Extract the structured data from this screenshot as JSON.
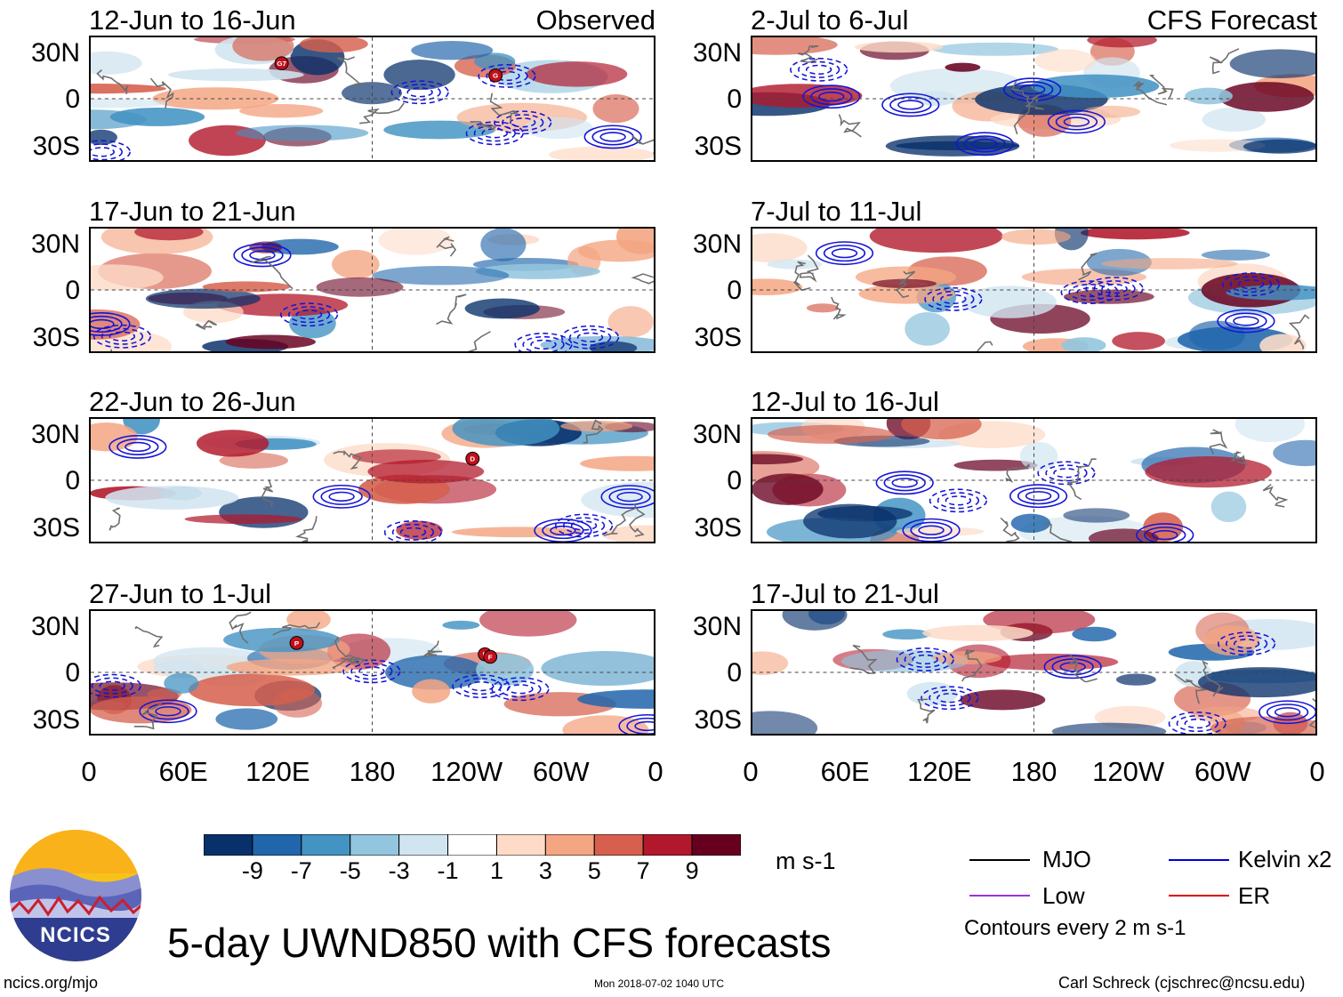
{
  "title": "5-day UWND850 with CFS forecasts",
  "headers": {
    "observed": "Observed",
    "forecast": "CFS Forecast"
  },
  "panels": [
    {
      "date": "12-Jun to 16-Jun",
      "kind": "observed"
    },
    {
      "date": "17-Jun to 21-Jun",
      "kind": "observed"
    },
    {
      "date": "22-Jun to 26-Jun",
      "kind": "observed"
    },
    {
      "date": "27-Jun to 1-Jul",
      "kind": "observed"
    },
    {
      "date": "2-Jul to 6-Jul",
      "kind": "forecast"
    },
    {
      "date": "7-Jul to 11-Jul",
      "kind": "forecast"
    },
    {
      "date": "12-Jul to 16-Jul",
      "kind": "forecast"
    },
    {
      "date": "17-Jul to 21-Jul",
      "kind": "forecast"
    }
  ],
  "lat_labels": [
    "30N",
    "0",
    "30S"
  ],
  "lon_labels": [
    "0",
    "60E",
    "120E",
    "180",
    "120W",
    "60W",
    "0"
  ],
  "colorbar": {
    "unit": "m s-1",
    "labels": [
      "-9",
      "-7",
      "-5",
      "-3",
      "-1",
      "1",
      "3",
      "5",
      "7",
      "9"
    ],
    "colors": [
      "#08306b",
      "#2166ac",
      "#4393c3",
      "#92c5de",
      "#d1e5f0",
      "#ffffff",
      "#fddbc7",
      "#f4a582",
      "#d6604d",
      "#b2182b",
      "#67001f"
    ]
  },
  "legend": [
    {
      "label": "MJO",
      "color": "#000000"
    },
    {
      "label": "Kelvin x2",
      "color": "#0000dd"
    },
    {
      "label": "Low",
      "color": "#9933dd"
    },
    {
      "label": "ER",
      "color": "#dd0000"
    }
  ],
  "contour_note": "Contours every 2 m s-1",
  "storm_markers": [
    {
      "panel": 0,
      "letter": "G7"
    },
    {
      "panel": 0,
      "letter": "G"
    },
    {
      "panel": 2,
      "letter": "D"
    },
    {
      "panel": 3,
      "letter": "P"
    },
    {
      "panel": 3,
      "letter": "E"
    },
    {
      "panel": 3,
      "letter": "F"
    }
  ],
  "logo": {
    "text": "NCICS"
  },
  "footer": {
    "left": "ncics.org/mjo",
    "center": "Mon 2018-07-02 1040 UTC",
    "right": "Carl Schreck (cjschrec@ncsu.edu)"
  }
}
